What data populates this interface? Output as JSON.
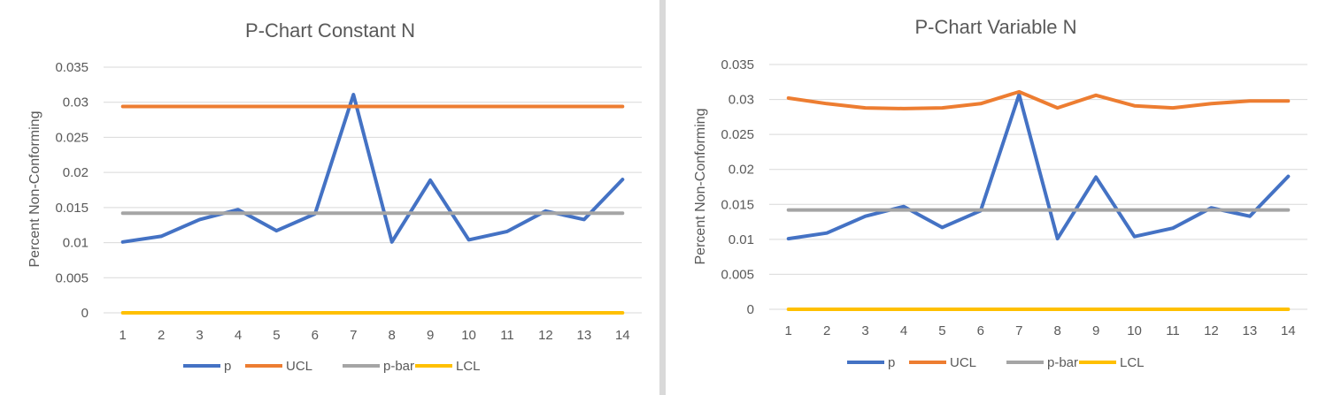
{
  "chart_data": [
    {
      "type": "line",
      "title": "P-Chart Constant N",
      "xlabel": "",
      "ylabel": "Percent Non-Conforming",
      "ylim": [
        0,
        0.035
      ],
      "yticks": [
        "0",
        "0.005",
        "0.01",
        "0.015",
        "0.02",
        "0.025",
        "0.03",
        "0.035"
      ],
      "grid": true,
      "legend": "bottom",
      "categories": [
        "1",
        "2",
        "3",
        "4",
        "5",
        "6",
        "7",
        "8",
        "9",
        "10",
        "11",
        "12",
        "13",
        "14"
      ],
      "series": [
        {
          "name": "p",
          "color": "#4472c4",
          "values": [
            0.0101,
            0.0109,
            0.0133,
            0.0147,
            0.0117,
            0.0141,
            0.0311,
            0.0101,
            0.0189,
            0.0104,
            0.0116,
            0.0145,
            0.0133,
            0.019
          ]
        },
        {
          "name": "UCL",
          "color": "#ed7d31",
          "values": [
            0.0294,
            0.0294,
            0.0294,
            0.0294,
            0.0294,
            0.0294,
            0.0294,
            0.0294,
            0.0294,
            0.0294,
            0.0294,
            0.0294,
            0.0294,
            0.0294
          ]
        },
        {
          "name": "p-bar",
          "color": "#a5a5a5",
          "values": [
            0.0142,
            0.0142,
            0.0142,
            0.0142,
            0.0142,
            0.0142,
            0.0142,
            0.0142,
            0.0142,
            0.0142,
            0.0142,
            0.0142,
            0.0142,
            0.0142
          ]
        },
        {
          "name": "LCL",
          "color": "#ffc000",
          "values": [
            0,
            0,
            0,
            0,
            0,
            0,
            0,
            0,
            0,
            0,
            0,
            0,
            0,
            0
          ]
        }
      ]
    },
    {
      "type": "line",
      "title": "P-Chart Variable N",
      "xlabel": "",
      "ylabel": "Percent Non-Conforming",
      "ylim": [
        0,
        0.035
      ],
      "yticks": [
        "0",
        "0.005",
        "0.01",
        "0.015",
        "0.02",
        "0.025",
        "0.03",
        "0.035"
      ],
      "grid": true,
      "legend": "bottom",
      "categories": [
        "1",
        "2",
        "3",
        "4",
        "5",
        "6",
        "7",
        "8",
        "9",
        "10",
        "11",
        "12",
        "13",
        "14"
      ],
      "series": [
        {
          "name": "p",
          "color": "#4472c4",
          "values": [
            0.0101,
            0.0109,
            0.0133,
            0.0147,
            0.0117,
            0.0141,
            0.0307,
            0.0101,
            0.0189,
            0.0104,
            0.0116,
            0.0145,
            0.0133,
            0.019
          ]
        },
        {
          "name": "UCL",
          "color": "#ed7d31",
          "values": [
            0.0302,
            0.0294,
            0.0288,
            0.0287,
            0.0288,
            0.0294,
            0.0311,
            0.0288,
            0.0306,
            0.0291,
            0.0288,
            0.0294,
            0.0298,
            0.0298
          ]
        },
        {
          "name": "p-bar",
          "color": "#a5a5a5",
          "values": [
            0.0142,
            0.0142,
            0.0142,
            0.0142,
            0.0142,
            0.0142,
            0.0142,
            0.0142,
            0.0142,
            0.0142,
            0.0142,
            0.0142,
            0.0142,
            0.0142
          ]
        },
        {
          "name": "LCL",
          "color": "#ffc000",
          "values": [
            0,
            0,
            0,
            0,
            0,
            0,
            0,
            0,
            0,
            0,
            0,
            0,
            0,
            0
          ]
        }
      ]
    }
  ]
}
